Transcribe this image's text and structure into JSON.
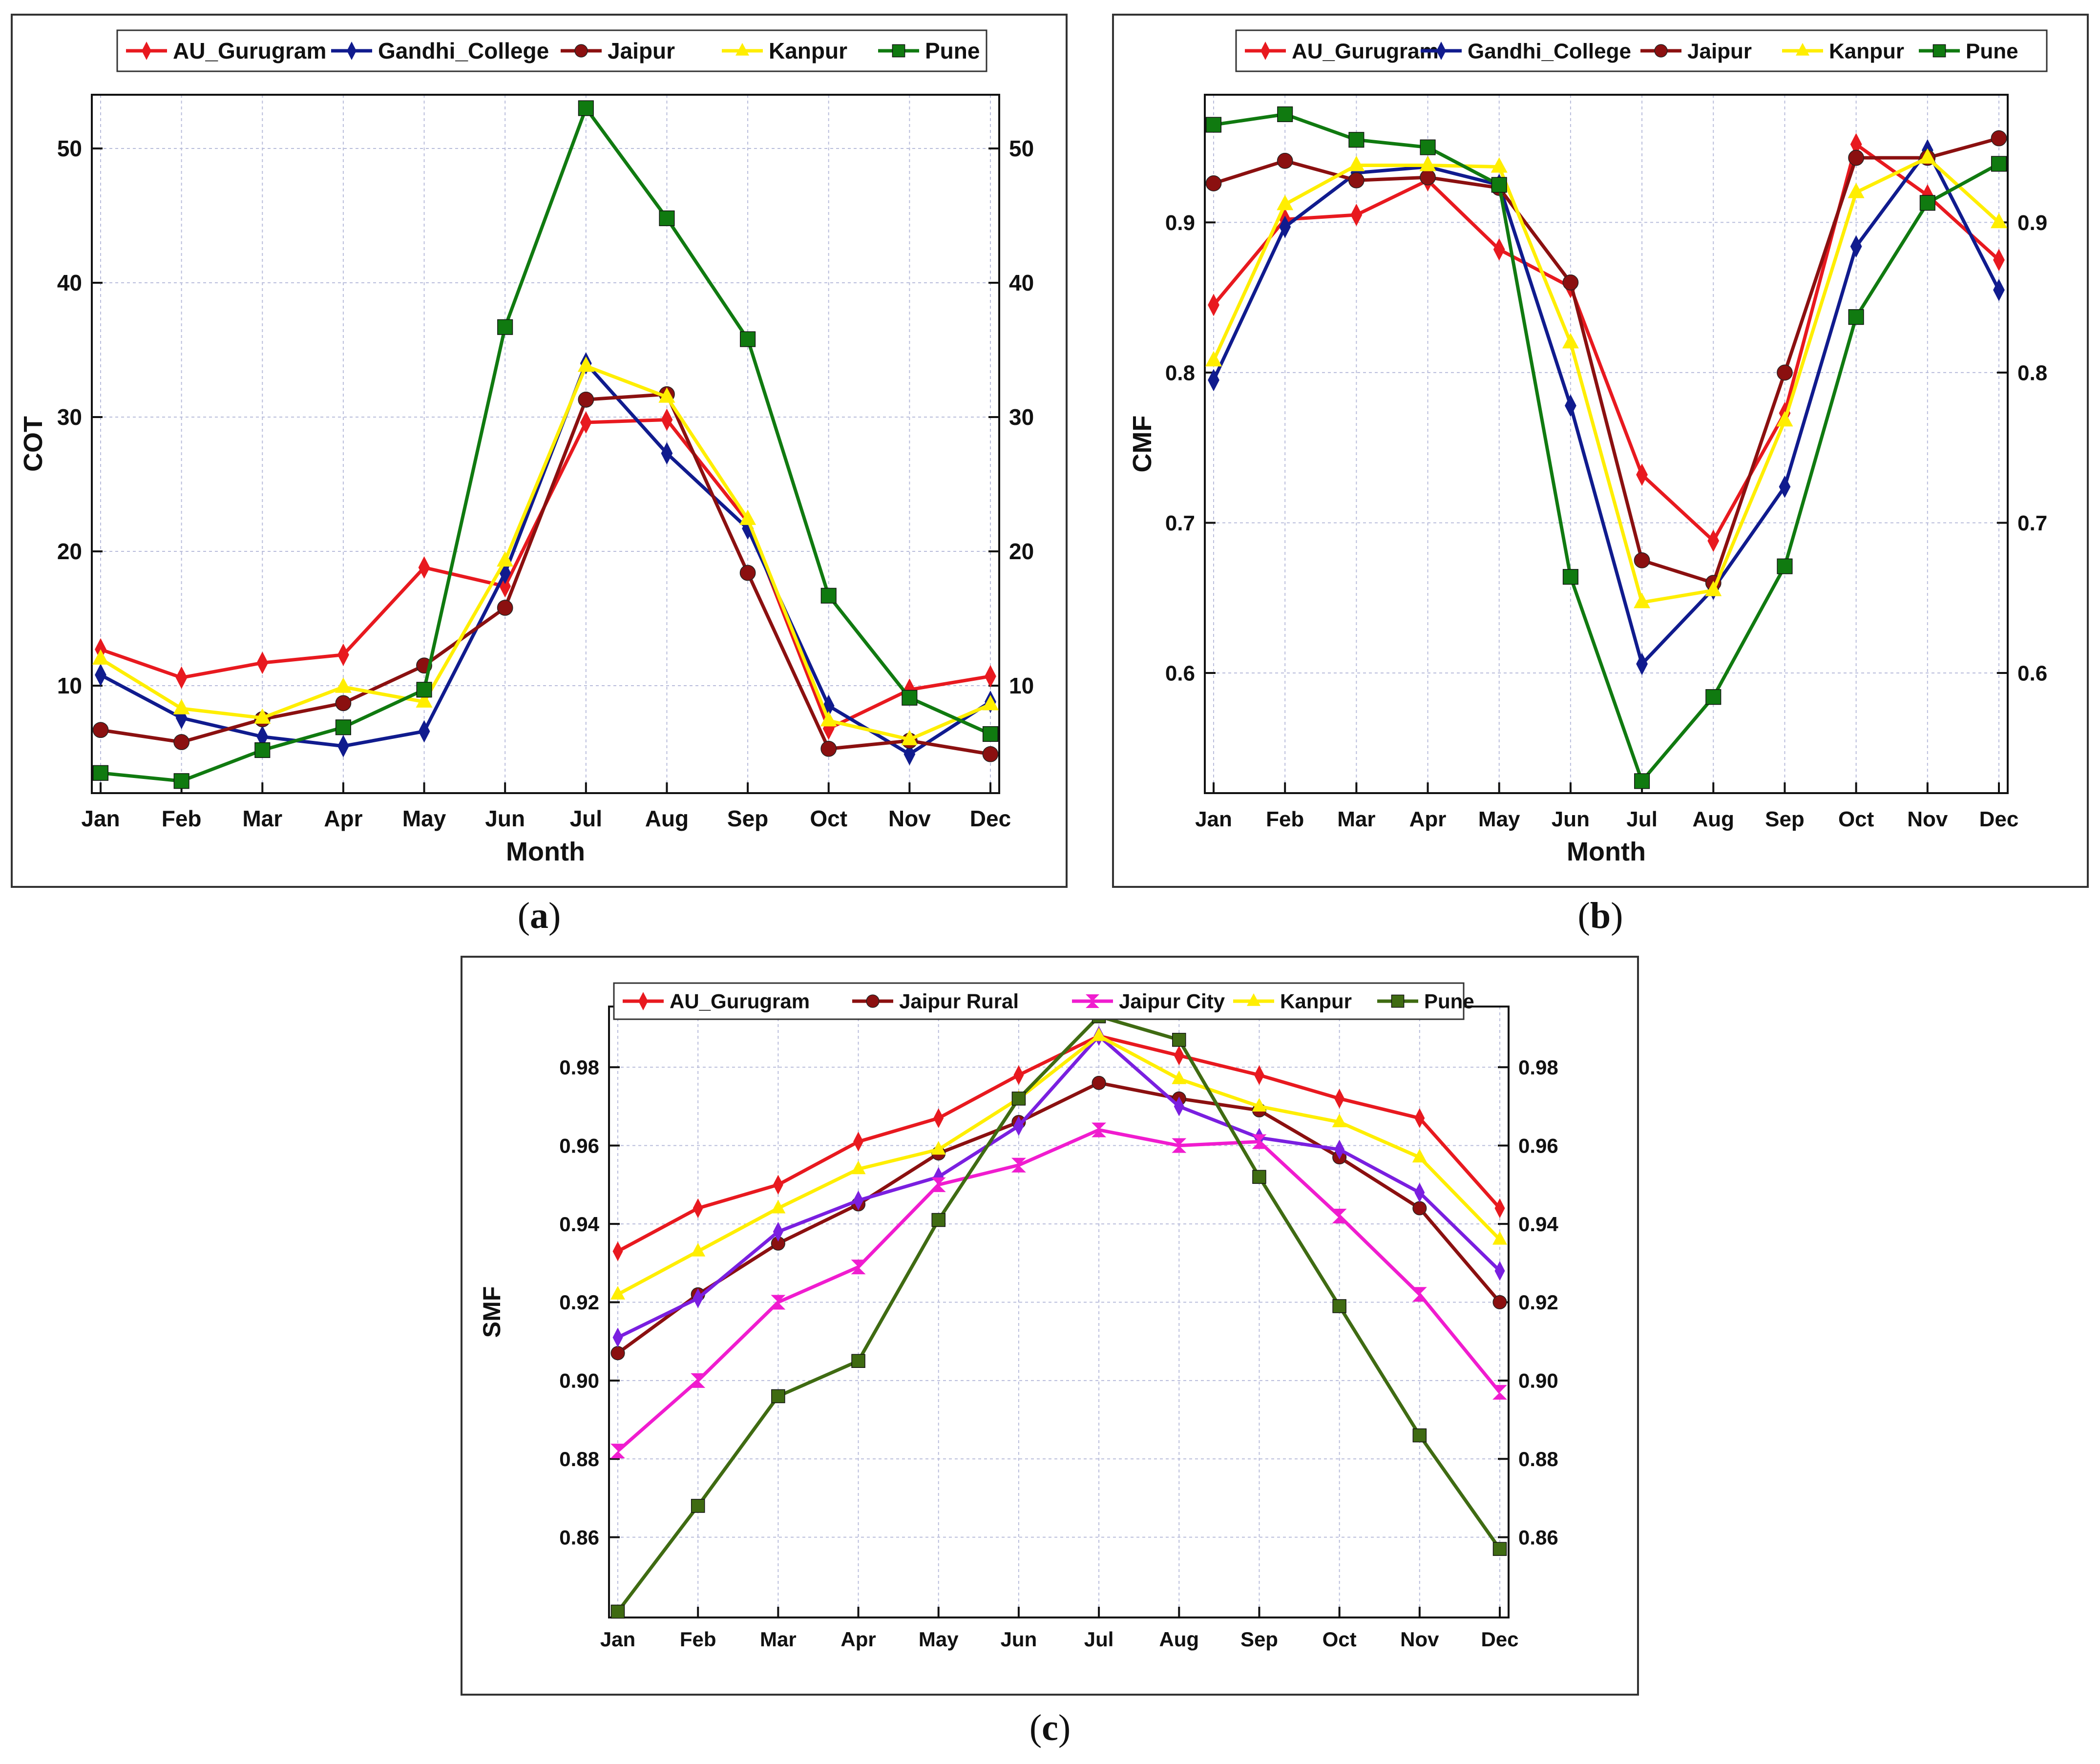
{
  "captions": {
    "a": "a",
    "b": "b",
    "c": "c"
  },
  "chart_data": [
    {
      "id": "a",
      "type": "line",
      "xlabel": "Month",
      "ylabel": "COT",
      "categories": [
        "Jan",
        "Feb",
        "Mar",
        "Apr",
        "May",
        "Jun",
        "Jul",
        "Aug",
        "Sep",
        "Oct",
        "Nov",
        "Dec"
      ],
      "ylim": [
        2,
        54
      ],
      "yticks": [
        10,
        20,
        30,
        40,
        50
      ],
      "grid": true,
      "legend": "top",
      "series": [
        {
          "name": "AU_Gurugram",
          "color": "#e8191f",
          "marker": "diamond",
          "values": [
            12.7,
            10.6,
            11.7,
            12.3,
            18.8,
            17.4,
            29.6,
            29.8,
            22.2,
            6.8,
            9.7,
            10.7
          ]
        },
        {
          "name": "Gandhi_College",
          "color": "#101b8e",
          "marker": "diamond",
          "values": [
            10.8,
            7.6,
            6.2,
            5.5,
            6.6,
            18.4,
            34.0,
            27.3,
            21.7,
            8.5,
            4.9,
            8.8
          ]
        },
        {
          "name": "Jaipur",
          "color": "#8b1010",
          "marker": "circle",
          "values": [
            6.7,
            5.8,
            7.5,
            8.7,
            11.5,
            15.8,
            31.3,
            31.7,
            18.4,
            5.3,
            5.9,
            4.9
          ]
        },
        {
          "name": "Kanpur",
          "color": "#ffee00",
          "marker": "triangle",
          "values": [
            12.0,
            8.3,
            7.6,
            9.9,
            8.8,
            19.3,
            33.8,
            31.5,
            22.4,
            7.4,
            6.0,
            8.6
          ]
        },
        {
          "name": "Pune",
          "color": "#107a10",
          "marker": "square",
          "values": [
            3.5,
            2.9,
            5.2,
            6.9,
            9.7,
            36.7,
            53.0,
            44.8,
            35.8,
            16.7,
            9.1,
            6.4
          ]
        }
      ]
    },
    {
      "id": "b",
      "type": "line",
      "xlabel": "Month",
      "ylabel": "CMF",
      "categories": [
        "Jan",
        "Feb",
        "Mar",
        "Apr",
        "May",
        "Jun",
        "Jul",
        "Aug",
        "Sep",
        "Oct",
        "Nov",
        "Dec"
      ],
      "ylim": [
        0.52,
        0.985
      ],
      "yticks": [
        0.6,
        0.7,
        0.8,
        0.9
      ],
      "grid": true,
      "legend": "top",
      "series": [
        {
          "name": "AU_Gurugram",
          "color": "#e8191f",
          "marker": "diamond",
          "values": [
            0.845,
            0.902,
            0.905,
            0.928,
            0.882,
            0.857,
            0.732,
            0.688,
            0.773,
            0.952,
            0.918,
            0.875
          ]
        },
        {
          "name": "Gandhi_College",
          "color": "#101b8e",
          "marker": "diamond",
          "values": [
            0.795,
            0.897,
            0.933,
            0.937,
            0.925,
            0.778,
            0.606,
            0.656,
            0.724,
            0.884,
            0.948,
            0.855
          ]
        },
        {
          "name": "Jaipur",
          "color": "#8b1010",
          "marker": "circle",
          "values": [
            0.926,
            0.941,
            0.928,
            0.93,
            0.923,
            0.86,
            0.675,
            0.66,
            0.8,
            0.943,
            0.943,
            0.956
          ]
        },
        {
          "name": "Kanpur",
          "color": "#ffee00",
          "marker": "triangle",
          "values": [
            0.808,
            0.912,
            0.938,
            0.938,
            0.937,
            0.82,
            0.647,
            0.655,
            0.768,
            0.92,
            0.943,
            0.9
          ]
        },
        {
          "name": "Pune",
          "color": "#107a10",
          "marker": "square",
          "values": [
            0.965,
            0.972,
            0.955,
            0.95,
            0.925,
            0.664,
            0.528,
            0.584,
            0.671,
            0.837,
            0.913,
            0.939
          ]
        }
      ]
    },
    {
      "id": "c",
      "type": "line",
      "xlabel": "",
      "ylabel": "SMF",
      "categories": [
        "Jan",
        "Feb",
        "Mar",
        "Apr",
        "May",
        "Jun",
        "Jul",
        "Aug",
        "Sep",
        "Oct",
        "Nov",
        "Dec"
      ],
      "ylim": [
        0.8395,
        0.9955
      ],
      "yticks": [
        0.86,
        0.88,
        0.9,
        0.92,
        0.94,
        0.96,
        0.98
      ],
      "grid": true,
      "legend": "top",
      "series": [
        {
          "name": "AU_Gurugram",
          "color": "#e8191f",
          "marker": "diamond",
          "values": [
            0.933,
            0.944,
            0.95,
            0.961,
            0.967,
            0.978,
            0.988,
            0.983,
            0.978,
            0.972,
            0.967,
            0.944
          ]
        },
        {
          "name": "Jaipur Rural",
          "color": "#8b1010",
          "marker": "circle",
          "values": [
            0.907,
            0.922,
            0.935,
            0.945,
            0.958,
            0.966,
            0.976,
            0.972,
            0.969,
            0.957,
            0.944,
            0.92
          ]
        },
        {
          "name": "",
          "color": "#7a1fe0",
          "marker": "diamond",
          "values": [
            0.911,
            0.921,
            0.938,
            0.946,
            0.952,
            0.965,
            0.988,
            0.97,
            0.962,
            0.959,
            0.948,
            0.928
          ]
        },
        {
          "name": "Jaipur City",
          "color": "#f01ccf",
          "marker": "hourglass",
          "values": [
            0.882,
            0.9,
            0.92,
            0.929,
            0.95,
            0.955,
            0.964,
            0.96,
            0.961,
            0.942,
            0.922,
            0.897
          ]
        },
        {
          "name": "Kanpur",
          "color": "#ffee00",
          "marker": "triangle",
          "values": [
            0.922,
            0.933,
            0.944,
            0.954,
            0.959,
            0.972,
            0.988,
            0.977,
            0.97,
            0.966,
            0.957,
            0.936
          ]
        },
        {
          "name": "Pune",
          "color": "#3f6b12",
          "marker": "square",
          "values": [
            0.841,
            0.868,
            0.896,
            0.905,
            0.941,
            0.972,
            0.993,
            0.987,
            0.952,
            0.919,
            0.886,
            0.857
          ]
        }
      ]
    }
  ]
}
